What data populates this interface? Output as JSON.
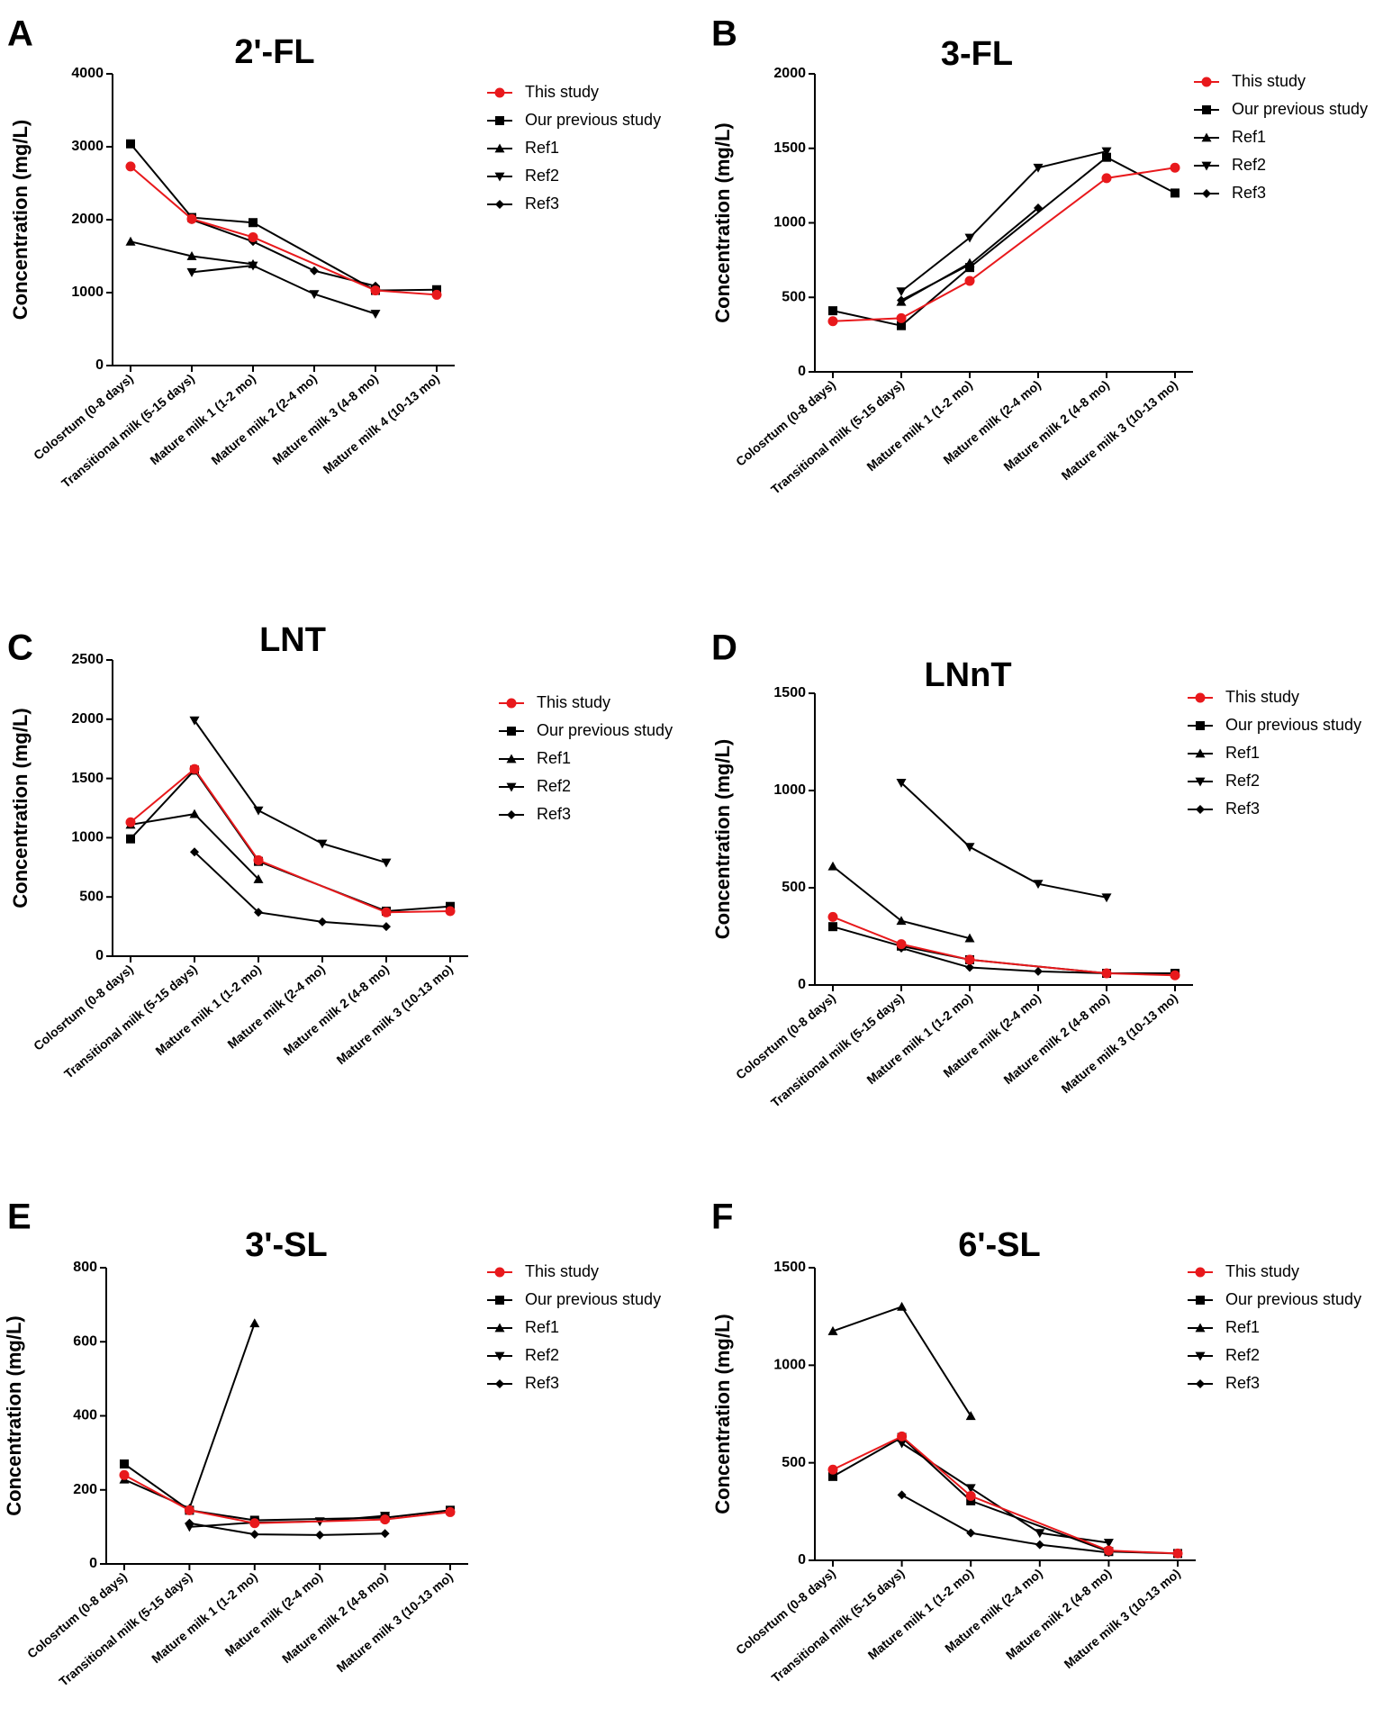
{
  "figure": {
    "series_styles": [
      {
        "name": "This study",
        "color": "#e8191c",
        "marker": "circle"
      },
      {
        "name": "Our previous study",
        "color": "#000000",
        "marker": "square"
      },
      {
        "name": "Ref1",
        "color": "#000000",
        "marker": "triangle-up"
      },
      {
        "name": "Ref2",
        "color": "#000000",
        "marker": "triangle-down"
      },
      {
        "name": "Ref3",
        "color": "#000000",
        "marker": "diamond"
      }
    ]
  },
  "chart_data": [
    {
      "panel": "A",
      "type": "line",
      "title": "2'-FL",
      "xlabel": "",
      "ylabel": "Concentration (mg/L)",
      "ylim": [
        0,
        4000
      ],
      "yticks": [
        0,
        1000,
        2000,
        3000,
        4000
      ],
      "grid": false,
      "legend_position": "top-right",
      "categories": [
        "Colosrtum (0-8 days)",
        "Transitional milk (5-15 days)",
        "Mature milk 1 (1-2 mo)",
        "Mature milk 2 (2-4 mo)",
        "Mature milk 3 (4-8 mo)",
        "Mature milk 4 (10-13 mo)"
      ],
      "series": [
        {
          "name": "This study",
          "values": [
            2730,
            2010,
            1760,
            null,
            1030,
            970
          ]
        },
        {
          "name": "Our previous study",
          "values": [
            3040,
            2030,
            1960,
            null,
            1030,
            1040
          ]
        },
        {
          "name": "Ref1",
          "values": [
            1700,
            1500,
            1390,
            null,
            null,
            null
          ]
        },
        {
          "name": "Ref2",
          "values": [
            null,
            1280,
            1370,
            980,
            710,
            null
          ]
        },
        {
          "name": "Ref3",
          "values": [
            null,
            2000,
            1700,
            1300,
            1090,
            null
          ]
        }
      ]
    },
    {
      "panel": "B",
      "type": "line",
      "title": "3-FL",
      "xlabel": "",
      "ylabel": "Concentration (mg/L)",
      "ylim": [
        0,
        2000
      ],
      "yticks": [
        0,
        500,
        1000,
        1500,
        2000
      ],
      "grid": false,
      "legend_position": "top-right",
      "categories": [
        "Colosrtum (0-8 days)",
        "Transitional milk (5-15 days)",
        "Mature milk 1 (1-2 mo)",
        "Mature milk (2-4 mo)",
        "Mature milk 2 (4-8 mo)",
        "Mature milk 3 (10-13 mo)"
      ],
      "series": [
        {
          "name": "This study",
          "values": [
            340,
            360,
            610,
            null,
            1300,
            1370
          ]
        },
        {
          "name": "Our previous study",
          "values": [
            410,
            310,
            700,
            null,
            1440,
            1200
          ]
        },
        {
          "name": "Ref1",
          "values": [
            null,
            470,
            730,
            null,
            null,
            null
          ]
        },
        {
          "name": "Ref2",
          "values": [
            null,
            540,
            900,
            1370,
            1480,
            null
          ]
        },
        {
          "name": "Ref3",
          "values": [
            null,
            480,
            720,
            1100,
            null,
            null
          ]
        }
      ]
    },
    {
      "panel": "C",
      "type": "line",
      "title": "LNT",
      "xlabel": "",
      "ylabel": "Concentration (mg/L)",
      "ylim": [
        0,
        2500
      ],
      "yticks": [
        0,
        500,
        1000,
        1500,
        2000,
        2500
      ],
      "grid": false,
      "legend_position": "top-right",
      "categories": [
        "Colosrtum (0-8 days)",
        "Transitional milk (5-15 days)",
        "Mature milk 1 (1-2 mo)",
        "Mature milk (2-4 mo)",
        "Mature milk 2 (4-8 mo)",
        "Mature milk 3 (10-13 mo)"
      ],
      "series": [
        {
          "name": "This study",
          "values": [
            1130,
            1580,
            810,
            null,
            370,
            380
          ]
        },
        {
          "name": "Our previous study",
          "values": [
            990,
            1570,
            800,
            null,
            380,
            420
          ]
        },
        {
          "name": "Ref1",
          "values": [
            1110,
            1200,
            650,
            null,
            null,
            null
          ]
        },
        {
          "name": "Ref2",
          "values": [
            null,
            1990,
            1230,
            950,
            790,
            null
          ]
        },
        {
          "name": "Ref3",
          "values": [
            null,
            880,
            370,
            290,
            250,
            null
          ]
        }
      ]
    },
    {
      "panel": "D",
      "type": "line",
      "title": "LNnT",
      "xlabel": "",
      "ylabel": "Concentration (mg/L)",
      "ylim": [
        0,
        1500
      ],
      "yticks": [
        0,
        500,
        1000,
        1500
      ],
      "grid": false,
      "legend_position": "top-right",
      "categories": [
        "Colosrtum (0-8 days)",
        "Transitional milk (5-15 days)",
        "Mature milk 1 (1-2 mo)",
        "Mature milk (2-4 mo)",
        "Mature milk 2 (4-8 mo)",
        "Mature milk 3 (10-13 mo)"
      ],
      "series": [
        {
          "name": "This study",
          "values": [
            350,
            210,
            130,
            null,
            60,
            50
          ]
        },
        {
          "name": "Our previous study",
          "values": [
            300,
            200,
            130,
            null,
            60,
            60
          ]
        },
        {
          "name": "Ref1",
          "values": [
            610,
            330,
            240,
            null,
            null,
            null
          ]
        },
        {
          "name": "Ref2",
          "values": [
            null,
            1040,
            710,
            520,
            450,
            null
          ]
        },
        {
          "name": "Ref3",
          "values": [
            null,
            190,
            90,
            70,
            60,
            null
          ]
        }
      ]
    },
    {
      "panel": "E",
      "type": "line",
      "title": "3'-SL",
      "xlabel": "",
      "ylabel": "Concentration (mg/L)",
      "ylim": [
        0,
        800
      ],
      "yticks": [
        0,
        200,
        400,
        600,
        800
      ],
      "grid": false,
      "legend_position": "top-right",
      "categories": [
        "Colosrtum (0-8 days)",
        "Transitional milk (5-15 days)",
        "Mature milk 1 (1-2 mo)",
        "Mature milk (2-4 mo)",
        "Mature milk 2 (4-8 mo)",
        "Mature milk 3 (10-13 mo)"
      ],
      "series": [
        {
          "name": "This study",
          "values": [
            240,
            145,
            110,
            null,
            120,
            140
          ]
        },
        {
          "name": "Our previous study",
          "values": [
            270,
            145,
            118,
            null,
            125,
            145
          ]
        },
        {
          "name": "Ref1",
          "values": [
            228,
            150,
            650,
            null,
            null,
            null
          ]
        },
        {
          "name": "Ref2",
          "values": [
            null,
            100,
            112,
            115,
            130,
            null
          ]
        },
        {
          "name": "Ref3",
          "values": [
            null,
            110,
            80,
            78,
            82,
            null
          ]
        }
      ]
    },
    {
      "panel": "F",
      "type": "line",
      "title": "6'-SL",
      "xlabel": "",
      "ylabel": "Concentration (mg/L)",
      "ylim": [
        0,
        1500
      ],
      "yticks": [
        0,
        500,
        1000,
        1500
      ],
      "grid": false,
      "legend_position": "top-right",
      "categories": [
        "Colosrtum (0-8 days)",
        "Transitional milk (5-15 days)",
        "Mature milk 1 (1-2 mo)",
        "Mature milk (2-4 mo)",
        "Mature milk 2 (4-8 mo)",
        "Mature milk 3 (10-13 mo)"
      ],
      "series": [
        {
          "name": "This study",
          "values": [
            465,
            635,
            330,
            null,
            50,
            35
          ]
        },
        {
          "name": "Our previous study",
          "values": [
            430,
            630,
            305,
            null,
            45,
            35
          ]
        },
        {
          "name": "Ref1",
          "values": [
            1175,
            1300,
            740,
            null,
            null,
            null
          ]
        },
        {
          "name": "Ref2",
          "values": [
            null,
            600,
            370,
            140,
            90,
            null
          ]
        },
        {
          "name": "Ref3",
          "values": [
            null,
            335,
            140,
            80,
            40,
            null
          ]
        }
      ]
    }
  ]
}
